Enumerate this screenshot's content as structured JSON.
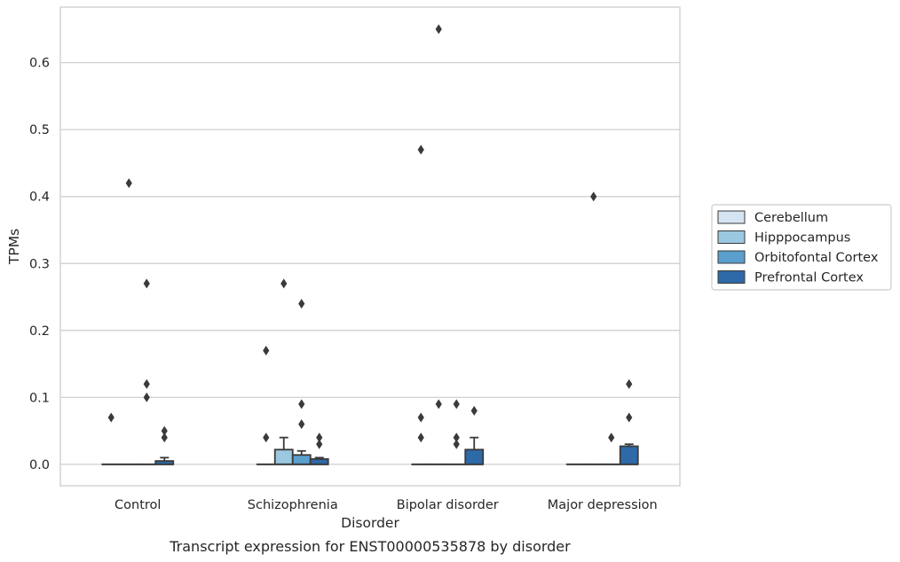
{
  "chart_data": {
    "type": "box",
    "caption": "Transcript expression for ENST00000535878 by disorder",
    "xlabel": "Disorder",
    "ylabel": "TPMs",
    "ylim": [
      -0.032,
      0.683
    ],
    "yticks": [
      0.0,
      0.1,
      0.2,
      0.3,
      0.4,
      0.5,
      0.6
    ],
    "ytick_labels": [
      "0.0",
      "0.1",
      "0.2",
      "0.3",
      "0.4",
      "0.5",
      "0.6"
    ],
    "grid": "horizontal",
    "legend_position": "right",
    "categories": [
      "Control",
      "Schizophrenia",
      "Bipolar disorder",
      "Major depression"
    ],
    "series": [
      {
        "name": "Cerebellum",
        "color": "#d4e4f2",
        "boxes": [
          {
            "q1": 0,
            "median": 0,
            "q3": 0,
            "whisker_low": 0,
            "whisker_high": 0,
            "outliers": [
              0.07
            ]
          },
          {
            "q1": 0,
            "median": 0,
            "q3": 0,
            "whisker_low": 0,
            "whisker_high": 0,
            "outliers": [
              0.17,
              0.04
            ]
          },
          {
            "q1": 0,
            "median": 0,
            "q3": 0,
            "whisker_low": 0,
            "whisker_high": 0,
            "outliers": [
              0.47,
              0.07,
              0.04
            ]
          },
          {
            "q1": 0,
            "median": 0,
            "q3": 0,
            "whisker_low": 0,
            "whisker_high": 0,
            "outliers": []
          }
        ]
      },
      {
        "name": "Hipppocampus",
        "color": "#9ac8e0",
        "boxes": [
          {
            "q1": 0,
            "median": 0,
            "q3": 0,
            "whisker_low": 0,
            "whisker_high": 0,
            "outliers": [
              0.42
            ]
          },
          {
            "q1": 0,
            "median": 0,
            "q3": 0.022,
            "whisker_low": 0,
            "whisker_high": 0.04,
            "outliers": [
              0.27
            ]
          },
          {
            "q1": 0,
            "median": 0,
            "q3": 0,
            "whisker_low": 0,
            "whisker_high": 0,
            "outliers": [
              0.65,
              0.09
            ]
          },
          {
            "q1": 0,
            "median": 0,
            "q3": 0,
            "whisker_low": 0,
            "whisker_high": 0,
            "outliers": [
              0.4
            ]
          }
        ]
      },
      {
        "name": "Orbitofontal Cortex",
        "color": "#5a9fcd",
        "boxes": [
          {
            "q1": 0,
            "median": 0,
            "q3": 0,
            "whisker_low": 0,
            "whisker_high": 0,
            "outliers": [
              0.27,
              0.12,
              0.1
            ]
          },
          {
            "q1": 0,
            "median": 0,
            "q3": 0.014,
            "whisker_low": 0,
            "whisker_high": 0.02,
            "outliers": [
              0.24,
              0.09,
              0.06
            ]
          },
          {
            "q1": 0,
            "median": 0,
            "q3": 0,
            "whisker_low": 0,
            "whisker_high": 0,
            "outliers": [
              0.09,
              0.04,
              0.03
            ]
          },
          {
            "q1": 0,
            "median": 0,
            "q3": 0,
            "whisker_low": 0,
            "whisker_high": 0,
            "outliers": [
              0.04
            ]
          }
        ]
      },
      {
        "name": "Prefrontal Cortex",
        "color": "#2e6aa8",
        "boxes": [
          {
            "q1": 0,
            "median": 0,
            "q3": 0.005,
            "whisker_low": 0,
            "whisker_high": 0.01,
            "outliers": [
              0.05,
              0.04
            ]
          },
          {
            "q1": 0,
            "median": 0,
            "q3": 0.008,
            "whisker_low": 0,
            "whisker_high": 0.01,
            "outliers": [
              0.04,
              0.03
            ]
          },
          {
            "q1": 0,
            "median": 0,
            "q3": 0.022,
            "whisker_low": 0,
            "whisker_high": 0.04,
            "outliers": [
              0.08
            ]
          },
          {
            "q1": 0,
            "median": 0,
            "q3": 0.027,
            "whisker_low": 0,
            "whisker_high": 0.03,
            "outliers": [
              0.12,
              0.07
            ]
          }
        ]
      }
    ]
  }
}
